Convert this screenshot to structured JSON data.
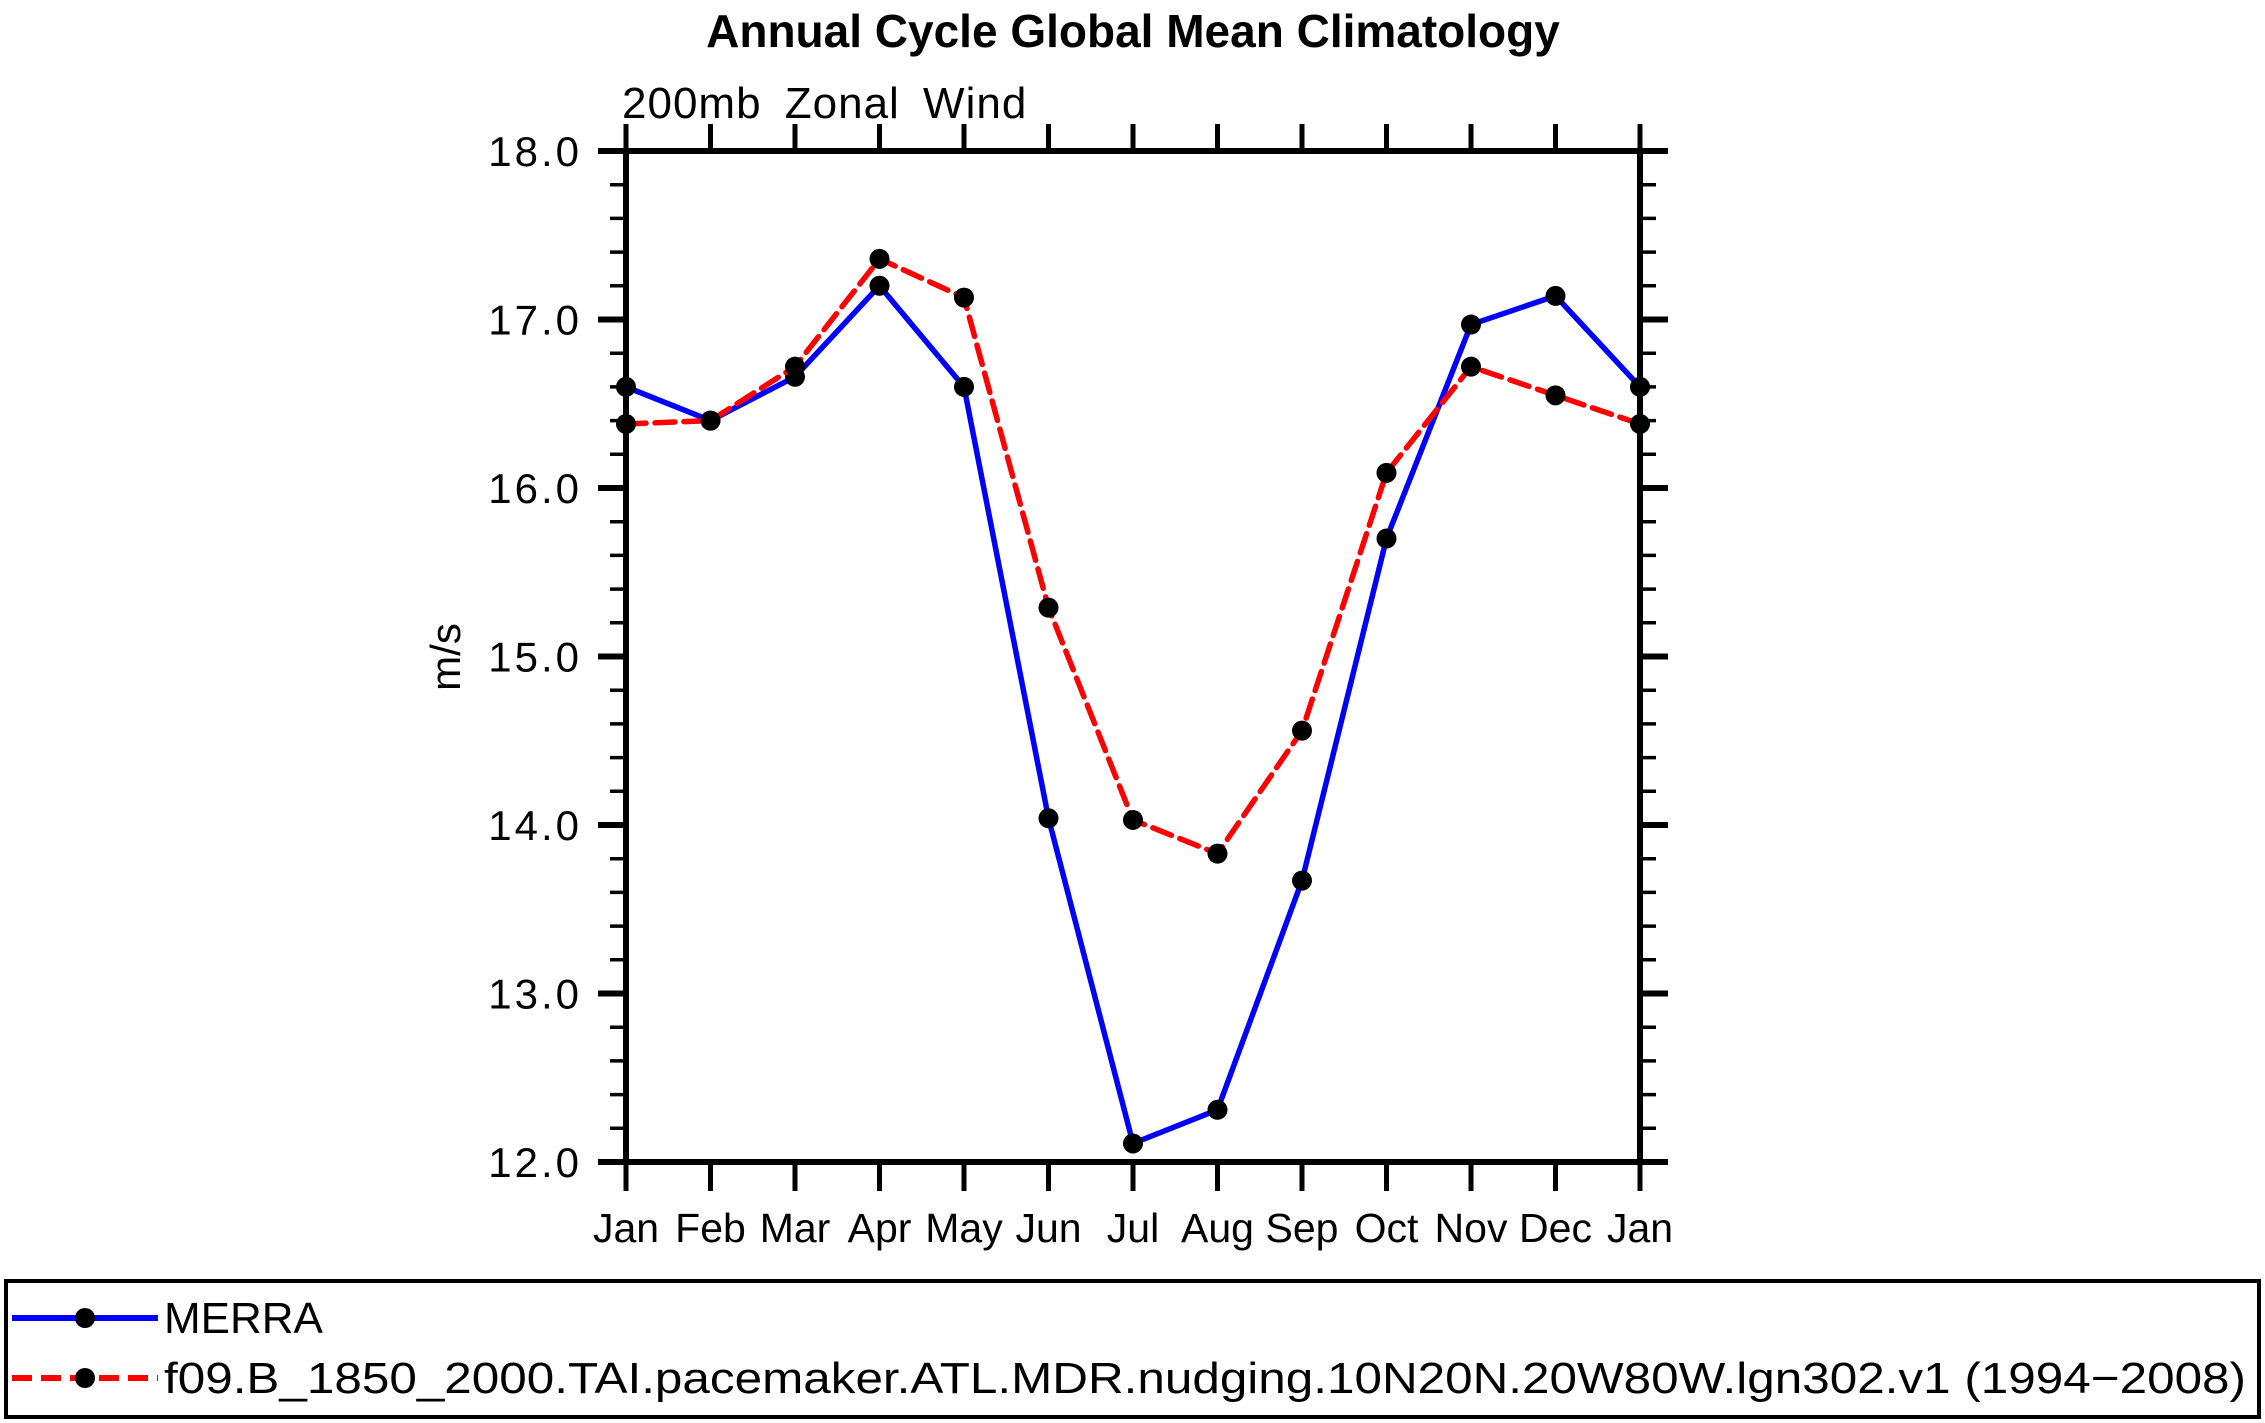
{
  "chart_data": {
    "type": "line",
    "title": "Annual Cycle Global Mean Climatology",
    "subtitle": "200mb Zonal Wind",
    "xlabel": "",
    "ylabel": "m/s",
    "ylim": [
      12.0,
      18.0
    ],
    "y_major_step": 1.0,
    "y_minor_step": 0.2,
    "ytick_labels": [
      "18.0",
      "17.0",
      "16.0",
      "15.0",
      "14.0",
      "13.0",
      "12.0"
    ],
    "categories": [
      "Jan",
      "Feb",
      "Mar",
      "Apr",
      "May",
      "Jun",
      "Jul",
      "Aug",
      "Sep",
      "Oct",
      "Nov",
      "Dec",
      "Jan"
    ],
    "series": [
      {
        "name": "MERRA",
        "line_color": "#0000ff",
        "line_style": "solid",
        "marker_color": "#000000",
        "values": [
          16.6,
          16.4,
          16.66,
          17.2,
          16.6,
          14.04,
          12.11,
          12.31,
          13.67,
          15.7,
          16.97,
          17.14,
          16.6
        ]
      },
      {
        "name": "f09.B_1850_2000.TAI.pacemaker.ATL.MDR.nudging.10N20N.20W80W.lgn302.v1 (1994−2008)",
        "line_color": "#ff0000",
        "line_style": "dashed",
        "marker_color": "#000000",
        "values": [
          16.38,
          16.4,
          16.72,
          17.36,
          17.13,
          15.29,
          14.03,
          13.83,
          14.56,
          16.09,
          16.72,
          16.55,
          16.38
        ]
      }
    ],
    "legend_position": "bottom",
    "grid": false,
    "axis_color": "#000000",
    "background_color": "#ffffff"
  }
}
